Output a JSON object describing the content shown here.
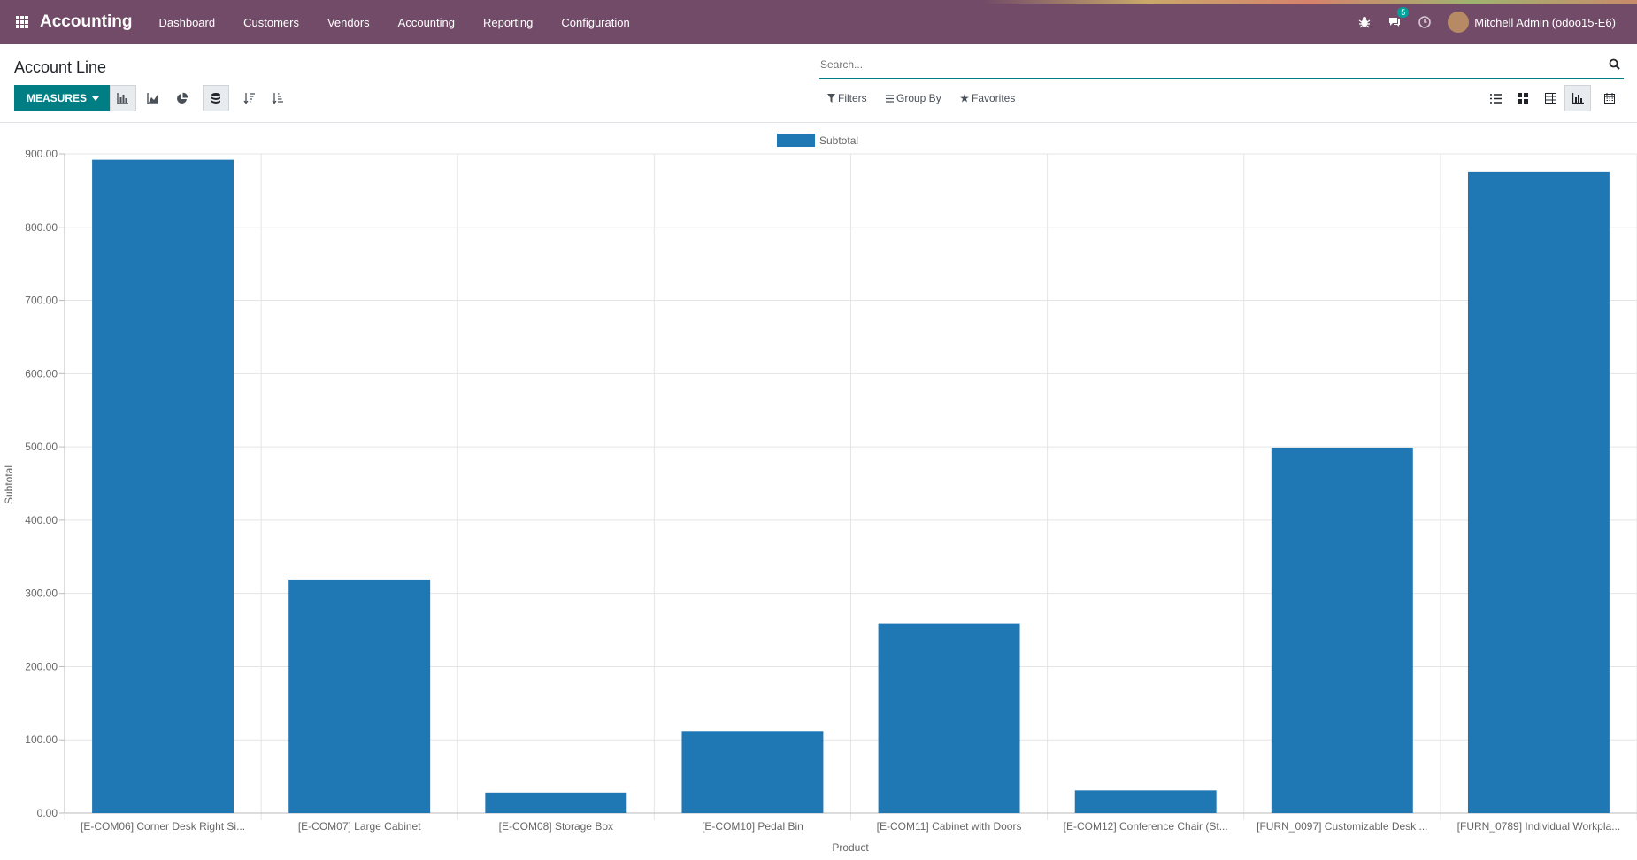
{
  "app": {
    "brand": "Accounting",
    "menu": [
      "Dashboard",
      "Customers",
      "Vendors",
      "Accounting",
      "Reporting",
      "Configuration"
    ],
    "messages_badge": "5",
    "user": "Mitchell Admin (odoo15-E6)"
  },
  "panel": {
    "title": "Account Line",
    "measures_label": "MEASURES",
    "search_placeholder": "Search...",
    "filters_label": "Filters",
    "groupby_label": "Group By",
    "favorites_label": "Favorites"
  },
  "icons": {
    "tools": [
      "bar-chart-icon",
      "line-chart-icon",
      "pie-chart-icon",
      "stacked-icon",
      "sort-descending-icon",
      "sort-ascending-icon"
    ],
    "views": [
      "list-view-icon",
      "kanban-view-icon",
      "pivot-view-icon",
      "graph-view-icon",
      "calendar-view-icon"
    ]
  },
  "colors": {
    "navbar": "#714b67",
    "accent": "#017e84",
    "bar": "#1f77b4"
  },
  "chart_data": {
    "type": "bar",
    "categories": [
      "[E-COM06] Corner Desk Right Si...",
      "[E-COM07] Large Cabinet",
      "[E-COM08] Storage Box",
      "[E-COM10] Pedal Bin",
      "[E-COM11] Cabinet with Doors",
      "[E-COM12] Conference Chair (St...",
      "[FURN_0097] Customizable Desk ...",
      "[FURN_0789] Individual Workpla..."
    ],
    "series": [
      {
        "name": "Subtotal",
        "values": [
          892,
          319,
          28,
          112,
          259,
          31,
          499,
          876
        ]
      }
    ],
    "xlabel": "Product",
    "ylabel": "Subtotal",
    "ylim": [
      0,
      900
    ],
    "yticks": [
      "0.00",
      "100.00",
      "200.00",
      "300.00",
      "400.00",
      "500.00",
      "600.00",
      "700.00",
      "800.00",
      "900.00"
    ],
    "grid": true,
    "legend": "top-center"
  }
}
